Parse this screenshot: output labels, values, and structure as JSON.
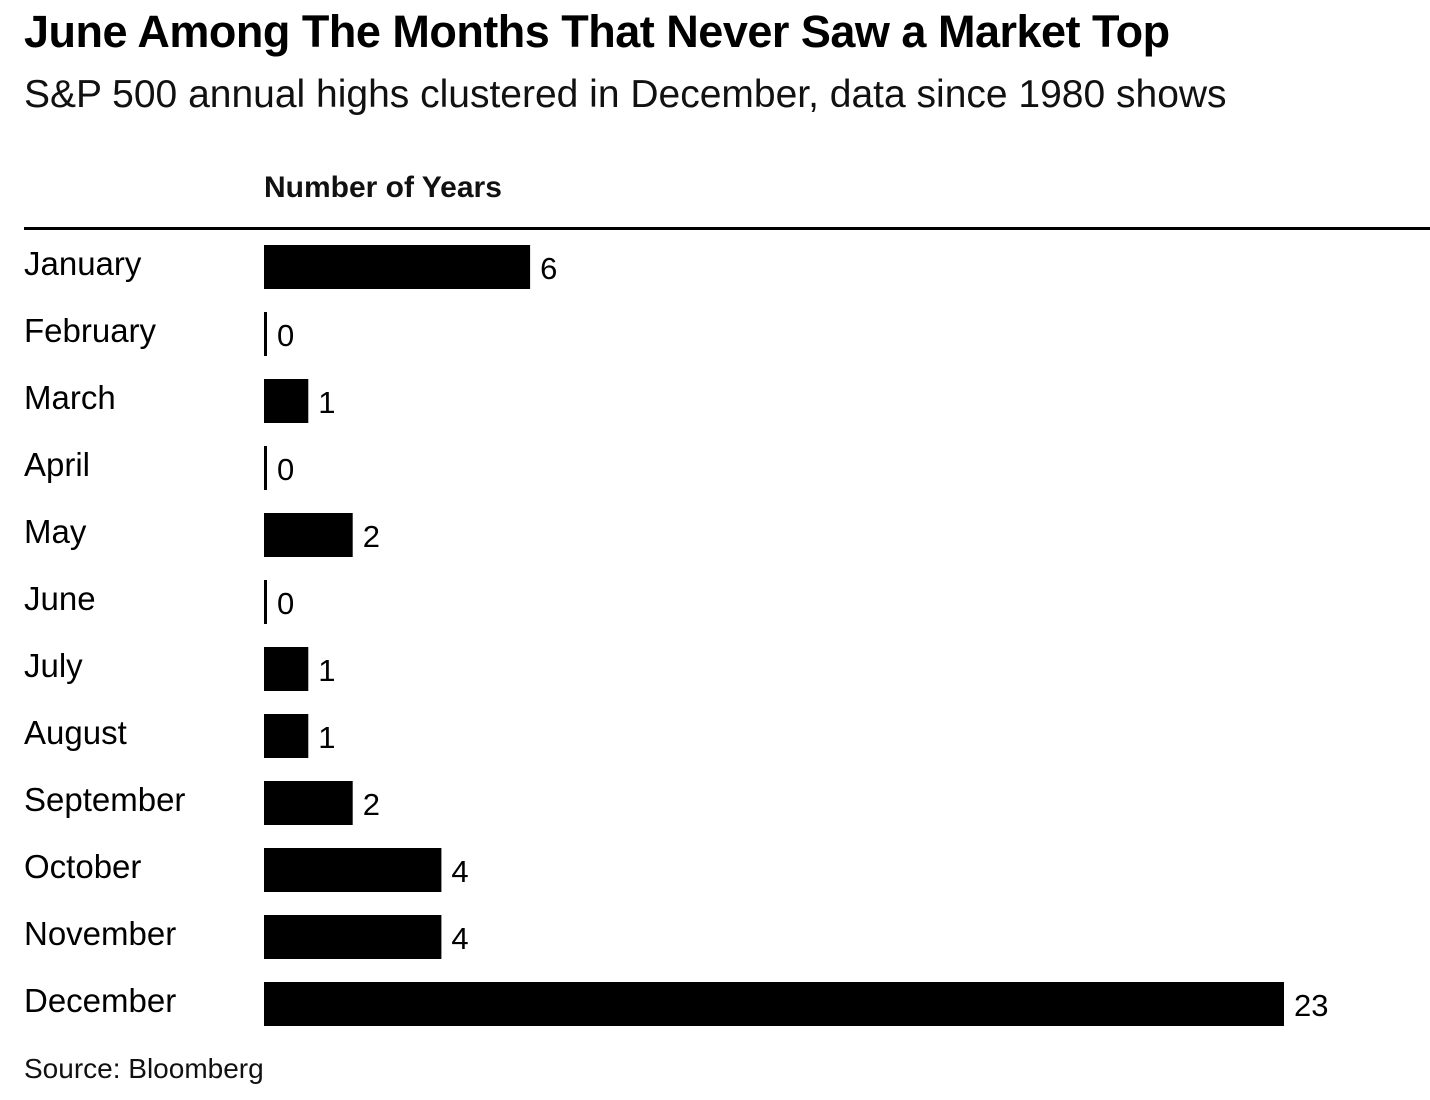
{
  "header": {
    "title": "June Among The Months That Never Saw a Market Top",
    "subtitle": "S&P 500 annual highs clustered in December, data since 1980 shows"
  },
  "footer": {
    "source": "Source: Bloomberg"
  },
  "colors": {
    "bar": "#000000",
    "text": "#000000",
    "background": "#ffffff"
  },
  "chart_data": {
    "type": "bar",
    "orientation": "horizontal",
    "title": "June Among The Months That Never Saw a Market Top",
    "subtitle": "S&P 500 annual highs clustered in December, data since 1980 shows",
    "xlabel": "Number of Years",
    "ylabel": "",
    "categories": [
      "January",
      "February",
      "March",
      "April",
      "May",
      "June",
      "July",
      "August",
      "September",
      "October",
      "November",
      "December"
    ],
    "values": [
      6,
      0,
      1,
      0,
      2,
      0,
      1,
      1,
      2,
      4,
      4,
      23
    ],
    "xlim": [
      0,
      23
    ],
    "grid": false,
    "data_labels": true
  }
}
